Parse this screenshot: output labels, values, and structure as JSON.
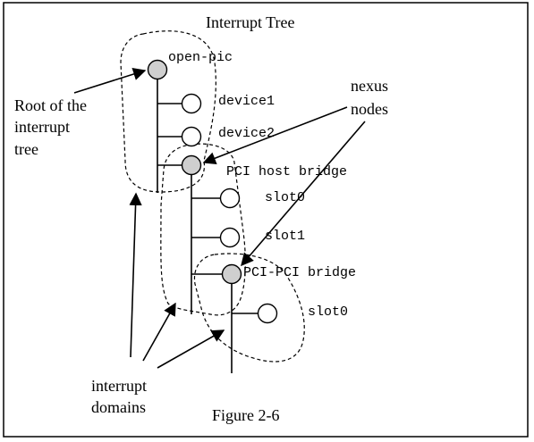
{
  "diagram": {
    "title": "Interrupt Tree",
    "caption": "Figure 2-6",
    "nodes": {
      "open_pic": "open-pic",
      "device1": "device1",
      "device2": "device2",
      "pci_host_bridge": "PCI host bridge",
      "slot0_a": "slot0",
      "slot1": "slot1",
      "pci_pci_bridge": "PCI-PCI bridge",
      "slot0_b": "slot0"
    },
    "annotations": {
      "root_line1": "Root of the",
      "root_line2": "interrupt",
      "root_line3": "tree",
      "nexus_line1": "nexus",
      "nexus_line2": "nodes",
      "domains_line1": "interrupt",
      "domains_line2": "domains"
    },
    "legend": {
      "nexus_node_color": "#cfcfcf",
      "leaf_node_color": "#ffffff"
    }
  }
}
